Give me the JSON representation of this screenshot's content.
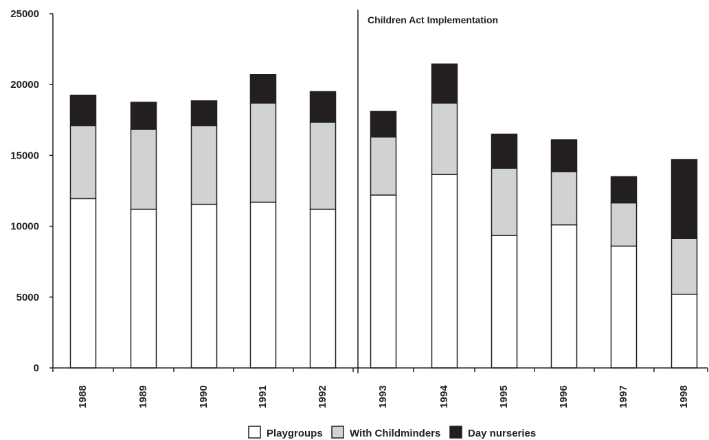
{
  "chart_data": {
    "type": "bar",
    "stacked": true,
    "title": "",
    "xlabel": "",
    "ylabel": "",
    "categories": [
      "1988",
      "1989",
      "1990",
      "1991",
      "1992",
      "1993",
      "1994",
      "1995",
      "1996",
      "1997",
      "1998"
    ],
    "ylim": [
      0,
      25000
    ],
    "yticks": [
      "0",
      "5000",
      "10000",
      "15000",
      "20000",
      "25000"
    ],
    "grid": false,
    "legend_position": "bottom",
    "series": [
      {
        "name": "Playgroups",
        "color": "#ffffff",
        "values": [
          11950,
          11200,
          11550,
          11700,
          11200,
          12200,
          13650,
          9350,
          10100,
          8600,
          5200
        ]
      },
      {
        "name": "With Childminders",
        "color": "#d0d2d3",
        "values": [
          5150,
          5650,
          5550,
          7000,
          6150,
          4100,
          5050,
          4750,
          3750,
          3050,
          3950
        ]
      },
      {
        "name": "Day nurseries",
        "color": "#231f20",
        "values": [
          2150,
          1900,
          1750,
          2000,
          2150,
          1800,
          2750,
          2400,
          2250,
          1850,
          5550
        ]
      }
    ],
    "annotations": [
      {
        "text": "Children Act Implementation",
        "between": [
          "1992",
          "1993"
        ]
      }
    ]
  }
}
